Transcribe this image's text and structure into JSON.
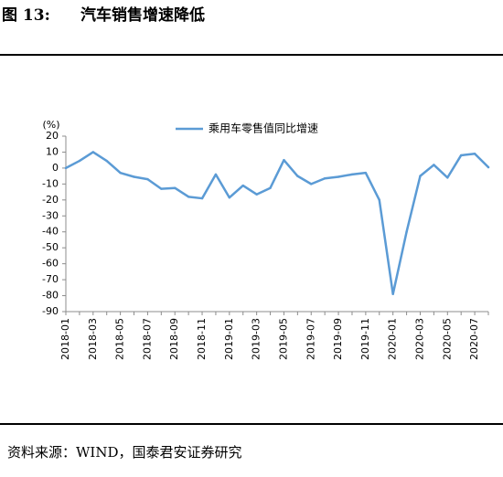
{
  "figure": {
    "label": "图 13:",
    "title": "汽车销售增速降低",
    "source": "资料来源：WIND，国泰君安证券研究"
  },
  "chart_data": {
    "type": "line",
    "unit": "(%)",
    "ylim": [
      -90,
      20
    ],
    "yticks": [
      20,
      10,
      0,
      -10,
      -20,
      -30,
      -40,
      -50,
      -60,
      -70,
      -80,
      -90
    ],
    "xtick_labels": [
      "2018-01",
      "2018-03",
      "2018-05",
      "2018-07",
      "2018-09",
      "2018-11",
      "2019-01",
      "2019-03",
      "2019-05",
      "2019-07",
      "2019-09",
      "2019-11",
      "2020-01",
      "2020-03",
      "2020-05",
      "2020-07"
    ],
    "x": [
      "2018-01",
      "2018-02",
      "2018-03",
      "2018-04",
      "2018-05",
      "2018-06",
      "2018-07",
      "2018-08",
      "2018-09",
      "2018-10",
      "2018-11",
      "2018-12",
      "2019-01",
      "2019-02",
      "2019-03",
      "2019-04",
      "2019-05",
      "2019-06",
      "2019-07",
      "2019-08",
      "2019-09",
      "2019-10",
      "2019-11",
      "2019-12",
      "2020-01",
      "2020-02",
      "2020-03",
      "2020-04",
      "2020-05",
      "2020-06",
      "2020-07",
      "2020-08"
    ],
    "series": [
      {
        "name": "乘用车零售值同比增速",
        "color": "#5B9BD5",
        "values": [
          0.0,
          4.5,
          10.0,
          4.5,
          -3.0,
          -5.5,
          -7.0,
          -13.0,
          -12.5,
          -18.0,
          -19.0,
          -4.0,
          -18.5,
          -11.0,
          -16.5,
          -12.5,
          5.0,
          -5.0,
          -10.0,
          -6.5,
          -5.5,
          -4.0,
          -3.0,
          -20.0,
          -79.0,
          -40.0,
          -5.0,
          2.0,
          -6.0,
          8.0,
          9.0,
          0.5
        ]
      }
    ],
    "legend_position": "top",
    "grid": false
  }
}
